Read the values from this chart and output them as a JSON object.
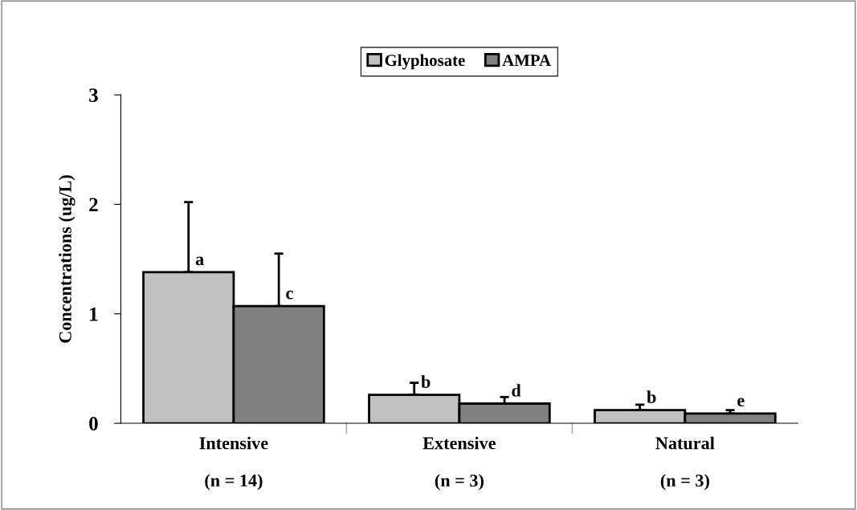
{
  "chart_data": {
    "type": "bar",
    "ylabel": "Concentrations (ug/L)",
    "categories": [
      "Intensive\n\n(n = 14)",
      "Extensive\n\n(n = 3)",
      "Natural\n\n(n = 3)"
    ],
    "series": [
      {
        "name": "Glyphosate",
        "color": "#c0c0c0",
        "values": [
          1.38,
          0.26,
          0.12
        ],
        "errors": [
          [
            1.38,
            2.02
          ],
          [
            0.26,
            0.37
          ],
          [
            0.12,
            0.17
          ]
        ],
        "value_labels": [
          "a",
          "b",
          "b"
        ]
      },
      {
        "name": "AMPA",
        "color": "#808080",
        "values": [
          1.07,
          0.18,
          0.09
        ],
        "errors": [
          [
            1.07,
            1.55
          ],
          [
            0.18,
            0.24
          ],
          [
            0.09,
            0.12
          ]
        ],
        "value_labels": [
          "c",
          "d",
          "e"
        ]
      }
    ],
    "ylim": [
      0,
      3
    ],
    "yticks": [
      0,
      1,
      2,
      3
    ],
    "grid": false,
    "legend": "top"
  }
}
